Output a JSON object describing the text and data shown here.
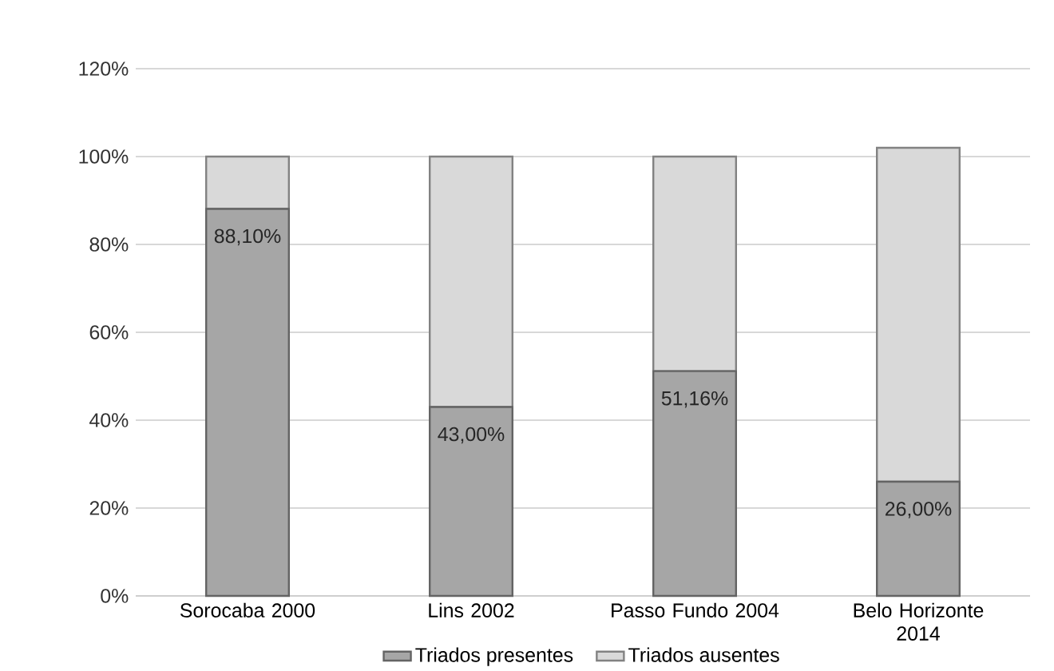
{
  "chart_data": {
    "type": "bar",
    "stacked": true,
    "categories": [
      "Sorocaba 2000",
      "Lins 2002",
      "Passo Fundo 2004",
      "Belo Horizonte 2014"
    ],
    "series": [
      {
        "name": "Triados presentes",
        "color": "#a6a6a6",
        "values": [
          88.1,
          43.0,
          51.16,
          26.0
        ],
        "value_labels": [
          "88,10%",
          "43,00%",
          "51,16%",
          "26,00%"
        ]
      },
      {
        "name": "Triados ausentes",
        "color": "#d9d9d9",
        "values": [
          11.9,
          57.0,
          48.84,
          76.0
        ]
      }
    ],
    "ylim": [
      0,
      120
    ],
    "yticks": [
      {
        "value": 0,
        "label": "0%"
      },
      {
        "value": 20,
        "label": "20%"
      },
      {
        "value": 40,
        "label": "40%"
      },
      {
        "value": 60,
        "label": "60%"
      },
      {
        "value": 80,
        "label": "80%"
      },
      {
        "value": 100,
        "label": "100%"
      },
      {
        "value": 120,
        "label": "120%"
      }
    ],
    "grid": "y",
    "legend": "bottom"
  }
}
